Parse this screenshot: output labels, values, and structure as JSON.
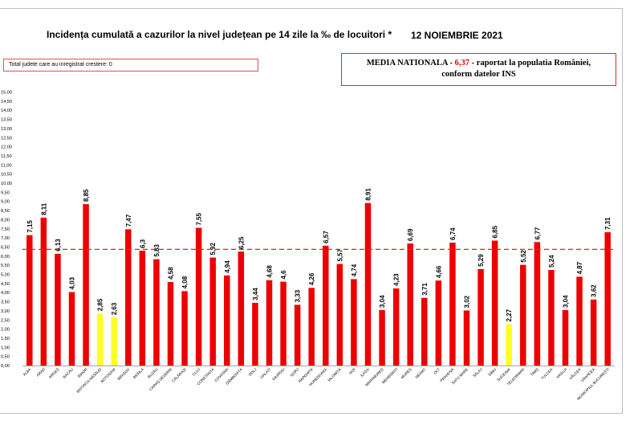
{
  "header": {
    "title": "Incidența cumulată a cazurilor la nivel județean pe 14 zile la ‰ de locuitori *",
    "date": "12 NOIEMBRIE 2021"
  },
  "growth_note": "Total judete care au inregistrat crestere: 0",
  "national_avg_box": {
    "prefix": "MEDIA NATIONALA - ",
    "value": "6,37",
    "suffix": " -  raportat la populatia României,",
    "line2": "conform datelor INS"
  },
  "colors": {
    "bar": "#ee0000",
    "highlight": "#ffff22",
    "reference_line": "#ee2020"
  },
  "chart_data": {
    "type": "bar",
    "title": "Incidența cumulată a cazurilor la nivel județean pe 14 zile la ‰ de locuitori *",
    "ylim": [
      0,
      15
    ],
    "ytick_step": 0.5,
    "reference_line": 6.37,
    "categories": [
      "ALBA",
      "ARAD",
      "ARGEȘ",
      "BACĂU",
      "BIHOR",
      "BISTRIȚA-NĂSĂUD",
      "BOTOȘANI",
      "BRAȘOV",
      "BRĂILA",
      "BUZĂU",
      "CARAȘ-SEVERIN",
      "CĂLĂRAȘI",
      "CLUJ",
      "CONSTANȚA",
      "COVASNA",
      "DÂMBOVIȚA",
      "DOLJ",
      "GALAȚI",
      "GIURGIU",
      "GORJ",
      "HARGHITA",
      "HUNEDOARA",
      "IALOMIȚA",
      "IAȘI",
      "ILFOV",
      "MARAMUREȘ",
      "MEHEDINȚI",
      "MUREȘ",
      "NEAMȚ",
      "OLT",
      "PRAHOVA",
      "SATU MARE",
      "SĂLAJ",
      "SIBIU",
      "SUCEAVA",
      "TELEORMAN",
      "TIMIȘ",
      "TULCEA",
      "VASLUI",
      "VÂLCEA",
      "VRANCEA",
      "MUNICIPIUL BUCUREȘTI"
    ],
    "values": [
      7.15,
      8.11,
      6.13,
      4.03,
      8.85,
      2.85,
      2.63,
      7.47,
      6.3,
      5.83,
      4.58,
      4.08,
      7.55,
      5.92,
      4.94,
      6.25,
      3.44,
      4.68,
      4.6,
      3.33,
      4.26,
      6.57,
      5.57,
      4.74,
      8.91,
      3.04,
      4.23,
      6.69,
      3.71,
      4.66,
      6.74,
      3.02,
      5.29,
      6.85,
      2.27,
      5.52,
      6.77,
      5.24,
      3.04,
      4.87,
      3.62,
      7.31
    ],
    "labels": [
      "7,15",
      "8,11",
      "6,13",
      "4,03",
      "8,85",
      "2,85",
      "2,63",
      "7,47",
      "6,3",
      "5,83",
      "4,58",
      "4,08",
      "7,55",
      "5,92",
      "4,94",
      "6,25",
      "3,44",
      "4,68",
      "4,6",
      "3,33",
      "4,26",
      "6,57",
      "5,57",
      "4,74",
      "8,91",
      "3,04",
      "4,23",
      "6,69",
      "3,71",
      "4,66",
      "6,74",
      "3,02",
      "5,29",
      "6,85",
      "2,27",
      "5,52",
      "6,77",
      "5,24",
      "3,04",
      "4,87",
      "3,62",
      "7,31"
    ],
    "highlighted": [
      "BISTRIȚA-NĂSĂUD",
      "BOTOȘANI",
      "SUCEAVA"
    ]
  }
}
